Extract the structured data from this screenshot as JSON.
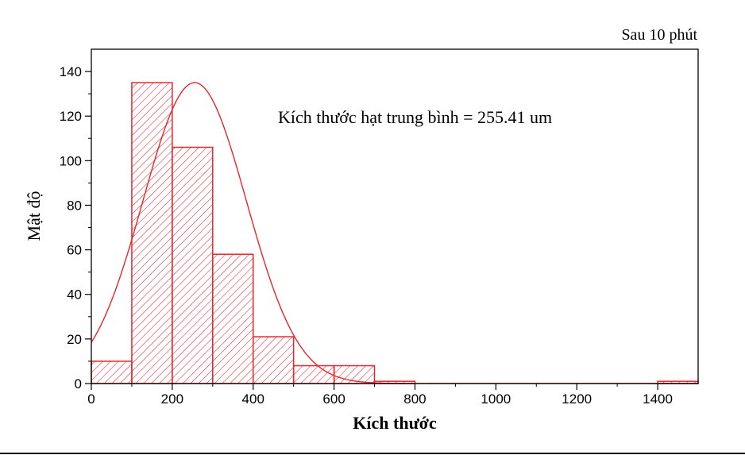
{
  "chart_data": {
    "type": "bar",
    "title": "Sau 10 phút",
    "annotation": "Kích thước hạt trung bình = 255.41 um",
    "xlabel": "Kích thước",
    "ylabel": "Mật độ",
    "xlim": [
      0,
      1500
    ],
    "ylim": [
      0,
      150
    ],
    "x_ticks": [
      0,
      200,
      400,
      600,
      800,
      1000,
      1200,
      1400
    ],
    "y_ticks": [
      0,
      20,
      40,
      60,
      80,
      100,
      120,
      140
    ],
    "bin_width": 100,
    "bins": [
      {
        "start": 0,
        "end": 100,
        "value": 10
      },
      {
        "start": 100,
        "end": 200,
        "value": 135
      },
      {
        "start": 200,
        "end": 300,
        "value": 106
      },
      {
        "start": 300,
        "end": 400,
        "value": 58
      },
      {
        "start": 400,
        "end": 500,
        "value": 21
      },
      {
        "start": 500,
        "end": 600,
        "value": 8
      },
      {
        "start": 600,
        "end": 700,
        "value": 8
      },
      {
        "start": 700,
        "end": 800,
        "value": 1
      },
      {
        "start": 1400,
        "end": 1500,
        "value": 1
      }
    ],
    "fit_curve": {
      "type": "gaussian",
      "mean": 255.41,
      "peak": 135,
      "sigma": 128
    },
    "grid": false,
    "colors": {
      "bars": "#e8262c",
      "curve": "#e8262c",
      "axes": "#000000"
    }
  }
}
